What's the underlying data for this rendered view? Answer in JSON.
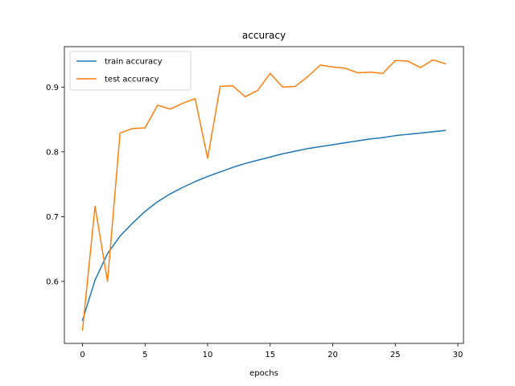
{
  "chart_data": {
    "type": "line",
    "title": "accuracy",
    "xlabel": "epochs",
    "ylabel": "",
    "xlim": [
      -1.45,
      30.45
    ],
    "ylim": [
      0.5043,
      0.9624
    ],
    "xticks": [
      0,
      5,
      10,
      15,
      20,
      25,
      30
    ],
    "xtick_labels": [
      "0",
      "5",
      "10",
      "15",
      "20",
      "25",
      "30"
    ],
    "yticks": [
      0.6,
      0.7,
      0.8,
      0.9
    ],
    "ytick_labels": [
      "0.6",
      "0.7",
      "0.8",
      "0.9"
    ],
    "grid": false,
    "legend_position": "upper-left",
    "x": [
      0,
      1,
      2,
      3,
      4,
      5,
      6,
      7,
      8,
      9,
      10,
      11,
      12,
      13,
      14,
      15,
      16,
      17,
      18,
      19,
      20,
      21,
      22,
      23,
      24,
      25,
      26,
      27,
      28,
      29
    ],
    "series": [
      {
        "name": "train accuracy",
        "color": "#1f77b4",
        "values": [
          0.54,
          0.602,
          0.643,
          0.67,
          0.69,
          0.708,
          0.723,
          0.735,
          0.745,
          0.754,
          0.762,
          0.769,
          0.776,
          0.782,
          0.787,
          0.792,
          0.797,
          0.801,
          0.805,
          0.808,
          0.811,
          0.814,
          0.817,
          0.82,
          0.822,
          0.825,
          0.827,
          0.829,
          0.831,
          0.833
        ]
      },
      {
        "name": "test accuracy",
        "color": "#ff7f0e",
        "values": [
          0.525,
          0.716,
          0.6,
          0.829,
          0.836,
          0.837,
          0.872,
          0.866,
          0.875,
          0.882,
          0.79,
          0.901,
          0.902,
          0.885,
          0.895,
          0.921,
          0.9,
          0.901,
          0.916,
          0.934,
          0.931,
          0.929,
          0.922,
          0.923,
          0.921,
          0.941,
          0.94,
          0.93,
          0.942,
          0.936
        ]
      }
    ]
  }
}
